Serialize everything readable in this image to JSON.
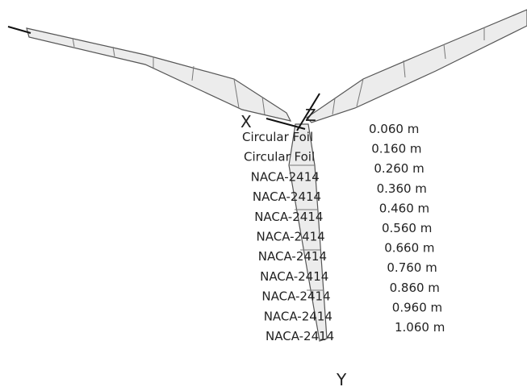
{
  "axes": {
    "x": "X",
    "y": "Y",
    "z": "Z"
  },
  "sections": [
    {
      "foil": "Circular Foil",
      "radius": "0.060 m"
    },
    {
      "foil": "Circular Foil",
      "radius": "0.160 m"
    },
    {
      "foil": "NACA-2414",
      "radius": "0.260 m"
    },
    {
      "foil": "NACA-2414",
      "radius": "0.360 m"
    },
    {
      "foil": "NACA-2414",
      "radius": "0.460 m"
    },
    {
      "foil": "NACA-2414",
      "radius": "0.560 m"
    },
    {
      "foil": "NACA-2414",
      "radius": "0.660 m"
    },
    {
      "foil": "NACA-2414",
      "radius": "0.760 m"
    },
    {
      "foil": "NACA-2414",
      "radius": "0.860 m"
    },
    {
      "foil": "NACA-2414",
      "radius": "0.960 m"
    },
    {
      "foil": "NACA-2414",
      "radius": "1.060 m"
    }
  ]
}
